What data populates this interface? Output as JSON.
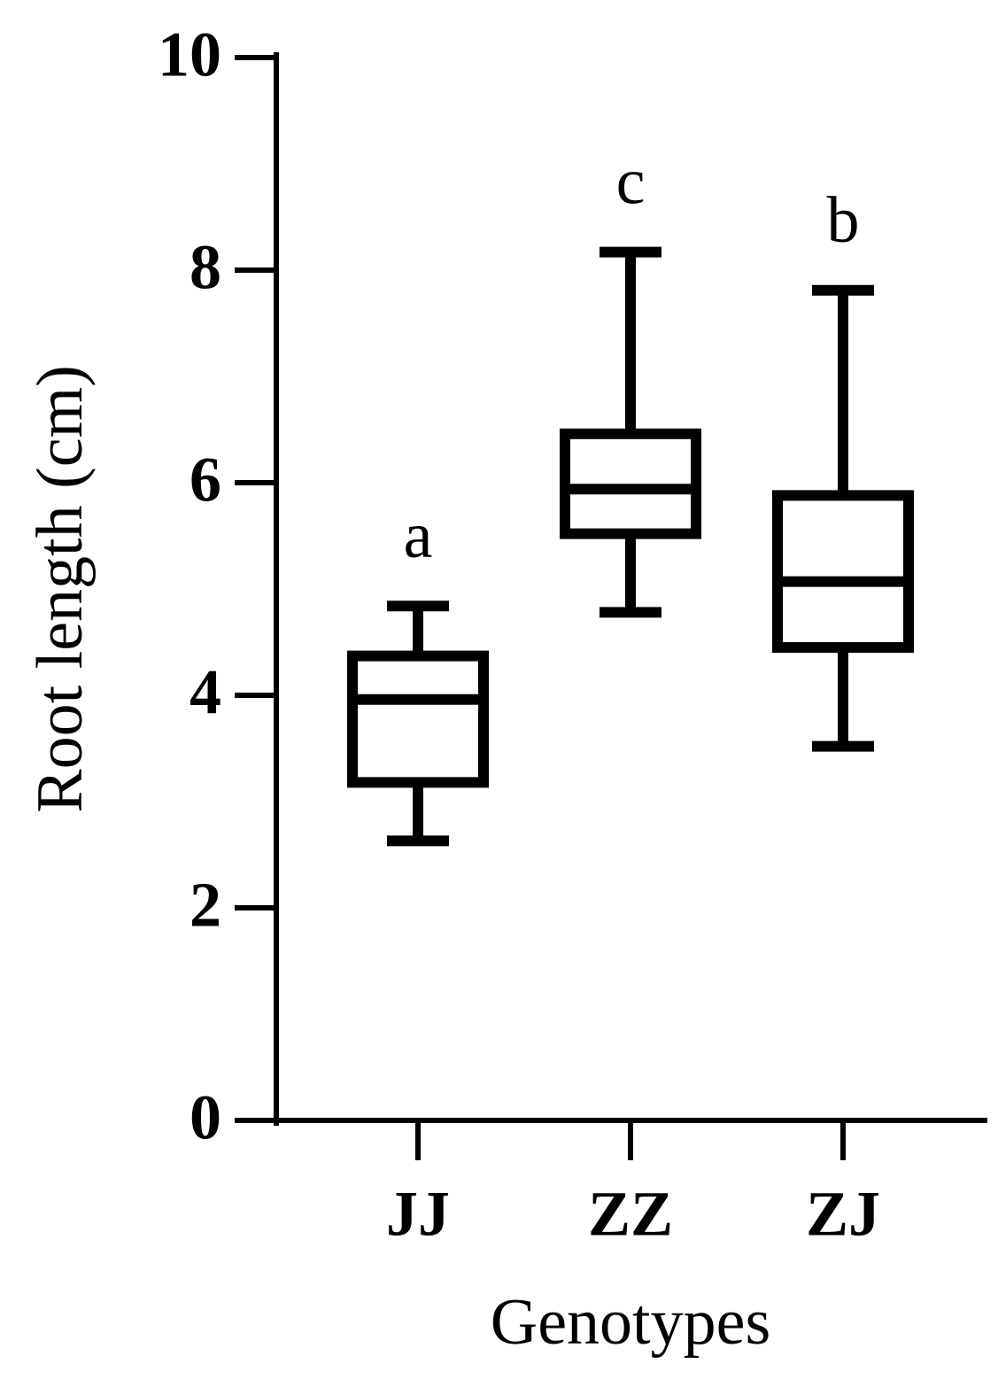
{
  "chart_data": {
    "type": "box",
    "x_label": "Genotypes",
    "y_label": "Root length (cm)",
    "categories": [
      "JJ",
      "ZZ",
      "ZJ"
    ],
    "boxes": [
      {
        "min": 2.63,
        "q1": 3.18,
        "median": 3.96,
        "q3": 4.37,
        "max": 4.84
      },
      {
        "min": 4.78,
        "q1": 5.52,
        "median": 5.94,
        "q3": 6.46,
        "max": 8.17
      },
      {
        "min": 3.52,
        "q1": 4.45,
        "median": 5.07,
        "q3": 5.88,
        "max": 7.81
      }
    ],
    "group_letters": [
      "a",
      "c",
      "b"
    ],
    "color": "#000000",
    "ylim": [
      0,
      10
    ],
    "yticks": [
      0,
      2,
      4,
      6,
      8,
      10
    ]
  }
}
